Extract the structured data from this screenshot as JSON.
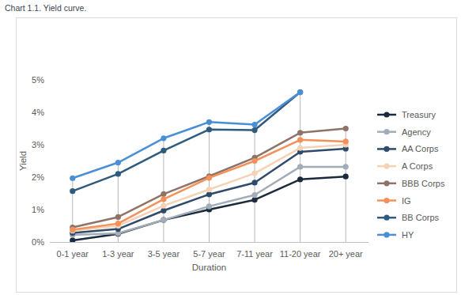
{
  "chart_data": {
    "type": "line",
    "title": "Chart 1.1. Yield curve.",
    "x_label": "Duration",
    "y_label": "Yield",
    "categories": [
      "0-1 year",
      "1-3 year",
      "3-5 year",
      "5-7 year",
      "7-11 year",
      "11-20 year",
      "20+ year"
    ],
    "ylim": [
      0,
      5
    ],
    "yticks": [
      {
        "value": 0,
        "label": "0%"
      },
      {
        "value": 1,
        "label": "1%"
      },
      {
        "value": 2,
        "label": "2%"
      },
      {
        "value": 3,
        "label": "3%"
      },
      {
        "value": 4,
        "label": "4%"
      },
      {
        "value": 5,
        "label": "5%"
      }
    ],
    "grid": false,
    "legend": "right",
    "marker": "circle",
    "series": [
      {
        "name": "Treasury",
        "color": "#1b2a3d",
        "values": [
          0.05,
          0.25,
          0.68,
          1.0,
          1.3,
          1.93,
          2.02
        ]
      },
      {
        "name": "Agency",
        "color": "#a3adb8",
        "values": [
          0.22,
          0.27,
          0.68,
          1.1,
          1.45,
          2.32,
          2.32
        ]
      },
      {
        "name": "AA Corps",
        "color": "#2f4b6b",
        "values": [
          0.28,
          0.4,
          0.97,
          1.47,
          1.83,
          2.78,
          2.88
        ]
      },
      {
        "name": "A Corps",
        "color": "#f3d2b6",
        "values": [
          0.35,
          0.5,
          1.12,
          1.62,
          2.12,
          2.9,
          3.0
        ]
      },
      {
        "name": "BBB Corps",
        "color": "#8e7468",
        "values": [
          0.45,
          0.77,
          1.48,
          2.03,
          2.6,
          3.37,
          3.5
        ]
      },
      {
        "name": "IG",
        "color": "#f4915a",
        "values": [
          0.38,
          0.57,
          1.32,
          1.98,
          2.5,
          3.15,
          3.1
        ]
      },
      {
        "name": "BB Corps",
        "color": "#2f5b7e",
        "values": [
          1.57,
          2.1,
          2.82,
          3.47,
          3.45,
          4.62,
          null
        ]
      },
      {
        "name": "HY",
        "color": "#4a8fd6",
        "values": [
          1.97,
          2.45,
          3.2,
          3.7,
          3.62,
          4.62,
          null
        ]
      }
    ]
  }
}
